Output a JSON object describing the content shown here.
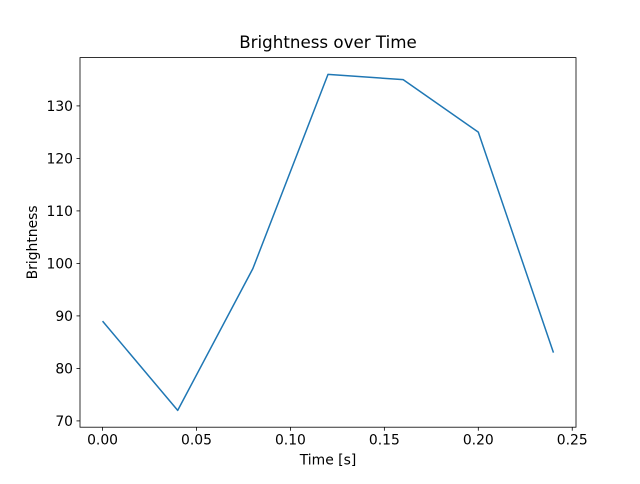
{
  "figure": {
    "background": "#ffffff",
    "text_color": "#000000",
    "spine_color": "#000000"
  },
  "chart_data": {
    "type": "line",
    "title": "Brightness over Time",
    "xlabel": "Time [s]",
    "ylabel": "Brightness",
    "x": [
      0.0,
      0.04,
      0.08,
      0.12,
      0.16,
      0.2,
      0.24
    ],
    "values": [
      89,
      72,
      99,
      136,
      135,
      125,
      83
    ],
    "line_color": "#1f77b4",
    "grid": false,
    "markers": false,
    "xlim": [
      -0.012,
      0.252
    ],
    "ylim": [
      68.8,
      139.2
    ],
    "xticks": {
      "values": [
        0.0,
        0.05,
        0.1,
        0.15,
        0.2,
        0.25
      ],
      "labels": [
        "0.00",
        "0.05",
        "0.10",
        "0.15",
        "0.20",
        "0.25"
      ]
    },
    "yticks": {
      "values": [
        70,
        80,
        90,
        100,
        110,
        120,
        130
      ],
      "labels": [
        "70",
        "80",
        "90",
        "100",
        "110",
        "120",
        "130"
      ]
    }
  }
}
